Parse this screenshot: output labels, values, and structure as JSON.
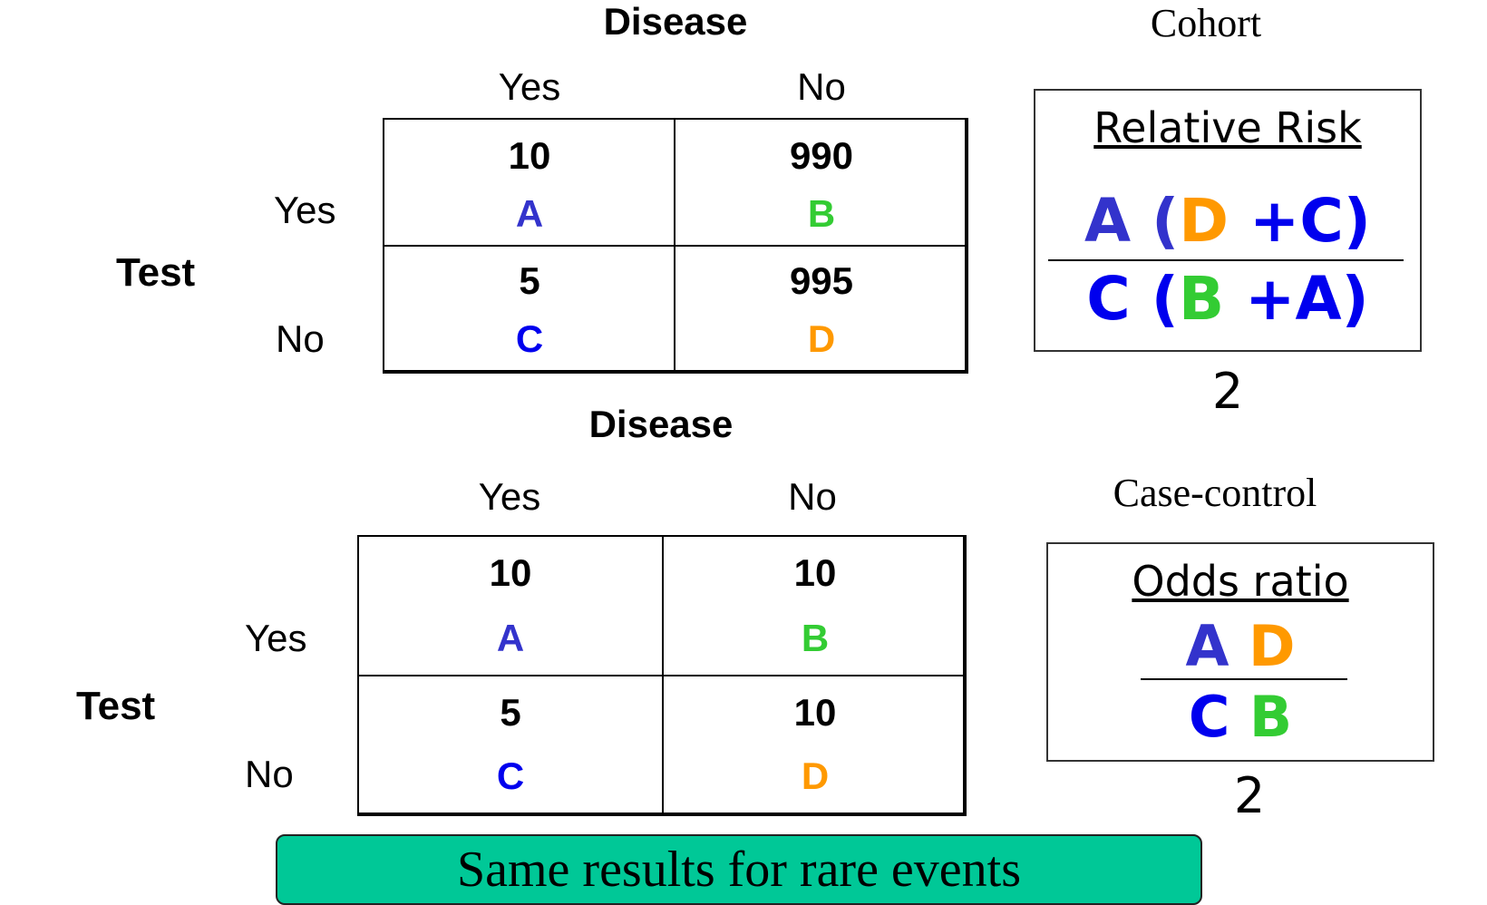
{
  "colors": {
    "A": "#3333cc",
    "B": "#33cc33",
    "C": "#0000ee",
    "D": "#ff9900"
  },
  "cohort": {
    "study_label": "Cohort",
    "header": "Disease",
    "col_yes": "Yes",
    "col_no": "No",
    "row_yes": "Yes",
    "row_no": "No",
    "test_label": "Test",
    "cells": {
      "a": "10",
      "b": "990",
      "c": "5",
      "d": "995"
    },
    "letters": {
      "a": "A",
      "b": "B",
      "c": "C",
      "d": "D"
    },
    "measure_title": "Relative Risk",
    "numerator": {
      "t1": "A ",
      "t2": "(",
      "t3": "D",
      "t4": " +C)"
    },
    "denominator": {
      "t1": "C ",
      "t2": "(",
      "t3": "B",
      "t4": " +A)"
    },
    "result": "2"
  },
  "case_control": {
    "study_label": "Case-control",
    "header": "Disease",
    "col_yes": "Yes",
    "col_no": "No",
    "row_yes": "Yes",
    "row_no": "No",
    "test_label": "Test",
    "cells": {
      "a": "10",
      "b": "10",
      "c": "5",
      "d": "10"
    },
    "letters": {
      "a": "A",
      "b": "B",
      "c": "C",
      "d": "D"
    },
    "measure_title": "Odds ratio",
    "numerator": {
      "t1": "A",
      "t2": "D"
    },
    "denominator": {
      "t1": "C",
      "t2": "B"
    },
    "result": "2"
  },
  "banner": "Same results for rare events"
}
